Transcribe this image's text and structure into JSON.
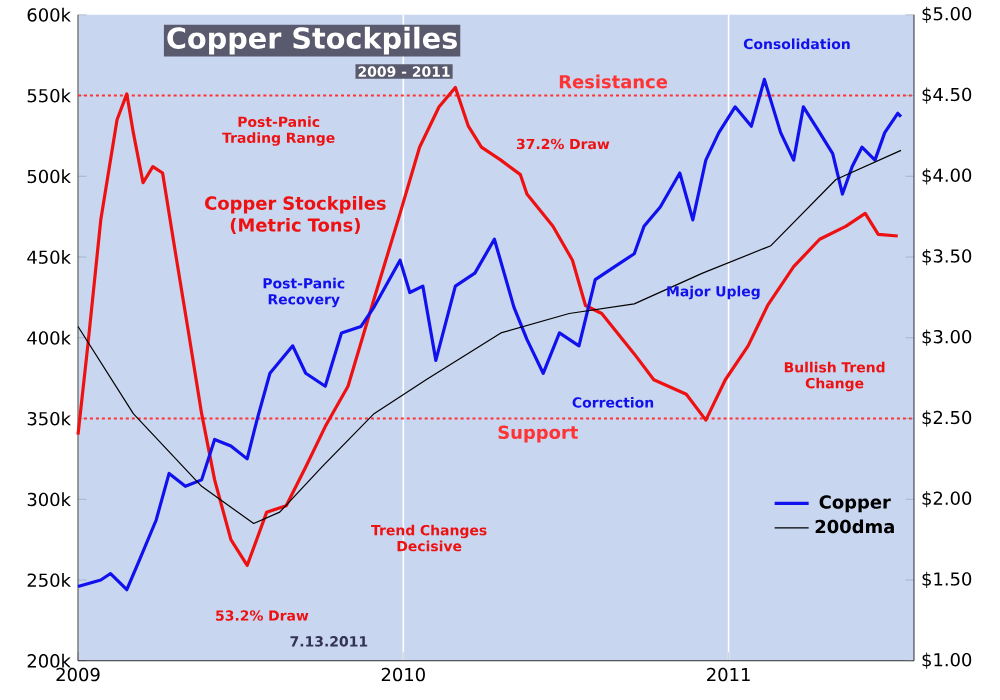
{
  "chart_data": {
    "type": "line",
    "title": "Copper Stockpiles",
    "subtitle": "2009 - 2011",
    "xlim": [
      2009,
      2011.57
    ],
    "xticks": [
      2009,
      2010,
      2011
    ],
    "ylim": [
      200000,
      600000
    ],
    "yticks": [
      {
        "value": 200000,
        "label": "200k"
      },
      {
        "value": 250000,
        "label": "250k"
      },
      {
        "value": 300000,
        "label": "300k"
      },
      {
        "value": 350000,
        "label": "350k"
      },
      {
        "value": 400000,
        "label": "400k"
      },
      {
        "value": 450000,
        "label": "450k"
      },
      {
        "value": 500000,
        "label": "500k"
      },
      {
        "value": 550000,
        "label": "550k"
      },
      {
        "value": 600000,
        "label": "600k"
      }
    ],
    "y2lim": [
      1,
      5
    ],
    "y2ticks": [
      {
        "value": 1,
        "label": "$1.00"
      },
      {
        "value": 1.5,
        "label": "$1.50"
      },
      {
        "value": 2,
        "label": "$2.00"
      },
      {
        "value": 2.5,
        "label": "$2.50"
      },
      {
        "value": 3,
        "label": "$3.00"
      },
      {
        "value": 3.5,
        "label": "$3.50"
      },
      {
        "value": 4,
        "label": "$4.00"
      },
      {
        "value": 4.5,
        "label": "$4.50"
      },
      {
        "value": 5,
        "label": "$5.00"
      }
    ],
    "grid": true,
    "legend": "bottom right",
    "line_style": "solid",
    "marker": "none",
    "series": [
      {
        "name": "Copper Stockpiles (Metric Tons)",
        "color": "#ee1111",
        "x": [
          2009.0,
          2009.03,
          2009.07,
          2009.12,
          2009.15,
          2009.17,
          2009.2,
          2009.23,
          2009.26,
          2009.3,
          2009.34,
          2009.38,
          2009.42,
          2009.47,
          2009.52,
          2009.58,
          2009.64,
          2009.7,
          2009.76,
          2009.83,
          2009.91,
          2009.99,
          2010.05,
          2010.11,
          2010.16,
          2010.2,
          2010.24,
          2010.3,
          2010.36,
          2010.38,
          2010.46,
          2010.52,
          2010.56,
          2010.61,
          2010.71,
          2010.77,
          2010.87,
          2010.93,
          2010.99,
          2011.06,
          2011.12,
          2011.2,
          2011.28,
          2011.36,
          2011.42,
          2011.46,
          2011.52
        ],
        "values": [
          340000,
          395000,
          473000,
          535000,
          551000,
          527000,
          496000,
          506000,
          502000,
          452000,
          403000,
          353000,
          312000,
          275000,
          259000,
          292000,
          296000,
          320000,
          345000,
          370000,
          424000,
          477000,
          518000,
          543000,
          555000,
          531000,
          518000,
          510000,
          501000,
          489000,
          469000,
          448000,
          420000,
          415000,
          390000,
          374000,
          365000,
          349000,
          374000,
          395000,
          420000,
          444000,
          461000,
          469000,
          477000,
          464000,
          463000
        ]
      },
      {
        "name": "Copper",
        "color": "#1111ee",
        "axis": "y2",
        "x": [
          2009.0,
          2009.07,
          2009.1,
          2009.15,
          2009.19,
          2009.24,
          2009.28,
          2009.33,
          2009.38,
          2009.42,
          2009.47,
          2009.52,
          2009.55,
          2009.59,
          2009.66,
          2009.7,
          2009.76,
          2009.81,
          2009.87,
          2009.91,
          2009.99,
          2010.02,
          2010.06,
          2010.1,
          2010.16,
          2010.22,
          2010.28,
          2010.34,
          2010.38,
          2010.43,
          2010.48,
          2010.54,
          2010.59,
          2010.65,
          2010.71,
          2010.74,
          2010.79,
          2010.85,
          2010.89,
          2010.93,
          2010.97,
          2011.02,
          2011.07,
          2011.11,
          2011.16,
          2011.2,
          2011.23,
          2011.28,
          2011.32,
          2011.35,
          2011.38,
          2011.41,
          2011.45,
          2011.48,
          2011.52,
          2011.53
        ],
        "values": [
          1.46,
          1.5,
          1.54,
          1.44,
          1.63,
          1.87,
          2.16,
          2.08,
          2.12,
          2.37,
          2.33,
          2.25,
          2.49,
          2.78,
          2.95,
          2.78,
          2.7,
          3.03,
          3.07,
          3.19,
          3.48,
          3.28,
          3.32,
          2.86,
          3.32,
          3.4,
          3.61,
          3.19,
          2.99,
          2.78,
          3.03,
          2.95,
          3.36,
          3.44,
          3.52,
          3.69,
          3.81,
          4.02,
          3.73,
          4.1,
          4.27,
          4.43,
          4.31,
          4.6,
          4.27,
          4.1,
          4.43,
          4.27,
          4.14,
          3.89,
          4.06,
          4.18,
          4.1,
          4.27,
          4.39,
          4.37
        ]
      },
      {
        "name": "200dma",
        "color": "#000000",
        "axis": "y2",
        "x": [
          2009.0,
          2009.17,
          2009.38,
          2009.54,
          2009.62,
          2009.75,
          2009.91,
          2010.07,
          2010.3,
          2010.51,
          2010.71,
          2010.92,
          2011.13,
          2011.33,
          2011.53
        ],
        "values": [
          3.07,
          2.53,
          2.08,
          1.85,
          1.92,
          2.2,
          2.53,
          2.74,
          3.03,
          3.15,
          3.21,
          3.4,
          3.57,
          3.98,
          4.16
        ]
      }
    ],
    "ref_lines": [
      {
        "axis": "y",
        "value": 550000,
        "label": "Resistance",
        "color": "#ff3333",
        "line_style": "dotted"
      },
      {
        "axis": "y",
        "value": 350000,
        "label": "Support",
        "color": "#ff3333",
        "line_style": "dotted"
      }
    ],
    "annotations": [
      "Post-Panic Trading Range",
      "53.2% Draw",
      "Post-Panic Recovery",
      "Trend Changes Decisive",
      "Correction",
      "37.2% Draw",
      "Major Upleg",
      "Consolidation",
      "Bullish Trend Change",
      "7.13.2011"
    ]
  }
}
